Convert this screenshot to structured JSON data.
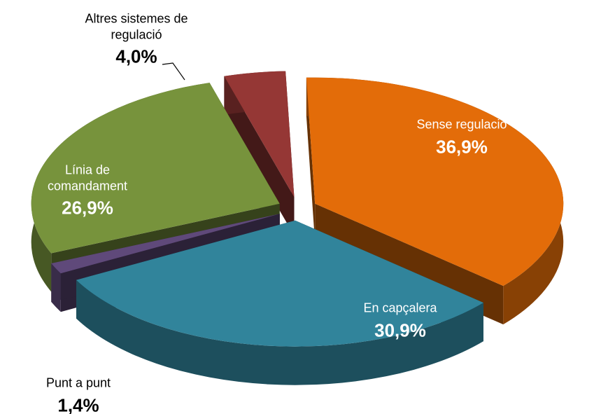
{
  "chart_data": {
    "type": "pie",
    "categories": [
      "Sense regulació",
      "En capçalera",
      "Punt a punt",
      "Línia de comandament",
      "Altres sistemes de regulació"
    ],
    "values": [
      36.9,
      30.9,
      1.4,
      26.9,
      4.0
    ],
    "value_labels": [
      "36,9%",
      "30,9%",
      "1,4%",
      "26,9%",
      "4,0%"
    ],
    "colors": [
      "#e36c09",
      "#31849b",
      "#5f497a",
      "#77933c",
      "#953735"
    ]
  }
}
